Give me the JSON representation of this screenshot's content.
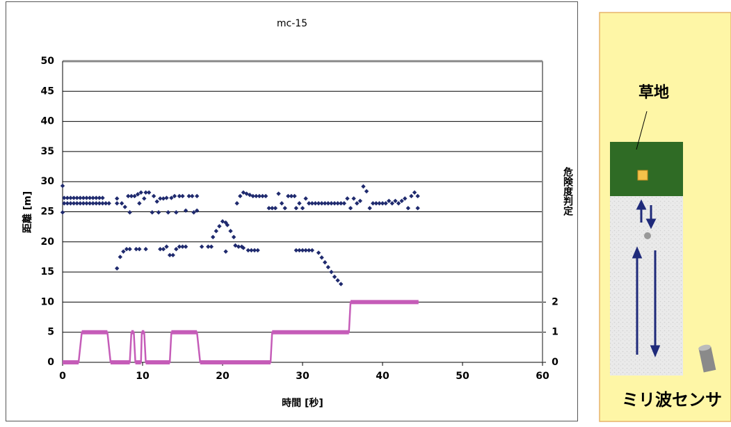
{
  "chart_data": {
    "type": "scatter",
    "title": "mc-15",
    "x_label": "時間 [秒]",
    "y_label": "距離 [m]",
    "y2_label": "危険度判定",
    "xlim": [
      0,
      60
    ],
    "xticks": [
      0,
      10,
      20,
      30,
      40,
      50,
      60
    ],
    "ylim": [
      0,
      50
    ],
    "yticks": [
      0,
      5,
      10,
      15,
      20,
      25,
      30,
      35,
      40,
      45,
      50
    ],
    "y2lim": [
      0,
      10
    ],
    "y2ticks": [
      0,
      1,
      2
    ],
    "grid": true,
    "series": [
      {
        "type": "scatter",
        "color": "#1f2a6e",
        "x": [
          0,
          0,
          0.2,
          0.2,
          0.6,
          0.6,
          1.0,
          1.0,
          1.4,
          1.4,
          1.8,
          1.8,
          2.2,
          2.2,
          2.6,
          2.6,
          3.0,
          3.0,
          3.4,
          3.4,
          3.8,
          3.8,
          4.2,
          4.2,
          4.6,
          4.6,
          5.0,
          5.0,
          5.4,
          5.8,
          6.8,
          6.8,
          7.4,
          7.8,
          8.2,
          8.4,
          8.6,
          9.0,
          9.4,
          9.6,
          9.8,
          10.2,
          10.4,
          10.8,
          11.2,
          11.4,
          11.8,
          12.0,
          12.2,
          12.6,
          13.0,
          13.2,
          13.6,
          14.0,
          14.2,
          14.6,
          15.0,
          15.4,
          15.8,
          16.2,
          16.4,
          16.8,
          16.8,
          6.8,
          7.2,
          7.6,
          8.0,
          8.4,
          9.2,
          9.6,
          10.4,
          12.2,
          12.6,
          13.0,
          13.4,
          13.8,
          14.2,
          14.6,
          15.0,
          15.4,
          17.4,
          18.2,
          18.6,
          18.8,
          19.2,
          19.6,
          20.0,
          20.4,
          20.6,
          21.0,
          21.4,
          21.6,
          22.0,
          22.4,
          22.6,
          23.2,
          23.6,
          24.0,
          24.4,
          20.4,
          21.8,
          22.2,
          22.6,
          23.0,
          23.4,
          23.8,
          24.2,
          24.6,
          25.0,
          25.4,
          25.8,
          26.2,
          26.6,
          27.0,
          27.4,
          27.8,
          28.2,
          28.6,
          29.0,
          29.2,
          29.6,
          30.0,
          30.4,
          30.8,
          31.2,
          31.6,
          32.0,
          32.4,
          32.8,
          33.2,
          33.6,
          34.0,
          34.4,
          34.8,
          35.2,
          35.6,
          36.0,
          36.4,
          36.8,
          37.2,
          37.6,
          38.0,
          38.4,
          38.8,
          39.2,
          39.6,
          40.0,
          40.4,
          40.8,
          41.2,
          41.6,
          42.0,
          42.4,
          42.8,
          43.2,
          43.6,
          44.0,
          44.4,
          44.4,
          29.2,
          29.6,
          30.0,
          30.4,
          30.8,
          31.2,
          32.0,
          32.4,
          32.8,
          33.2,
          33.6,
          34.0,
          34.4,
          34.8
        ],
        "values": [
          29.3,
          24.9,
          27.3,
          26.4,
          27.3,
          26.4,
          27.3,
          26.4,
          27.3,
          26.4,
          27.3,
          26.4,
          27.3,
          26.4,
          27.3,
          26.4,
          27.3,
          26.4,
          27.3,
          26.4,
          27.3,
          26.4,
          27.3,
          26.4,
          27.3,
          26.4,
          27.3,
          26.4,
          26.4,
          26.4,
          27.2,
          26.4,
          26.4,
          25.8,
          27.6,
          24.9,
          27.6,
          27.6,
          27.9,
          26.4,
          28.2,
          27.2,
          28.2,
          28.2,
          24.9,
          27.6,
          26.7,
          24.9,
          27.2,
          27.2,
          27.3,
          24.9,
          27.3,
          27.6,
          24.9,
          27.6,
          27.6,
          25.2,
          27.6,
          27.6,
          24.9,
          25.2,
          27.6,
          15.6,
          17.5,
          18.4,
          18.8,
          18.8,
          18.8,
          18.8,
          18.8,
          18.8,
          18.8,
          19.2,
          17.8,
          17.8,
          18.8,
          19.2,
          19.2,
          19.2,
          19.2,
          19.2,
          19.2,
          20.8,
          21.8,
          22.6,
          23.4,
          23.2,
          22.8,
          21.8,
          20.8,
          19.4,
          19.2,
          19.2,
          19.0,
          18.6,
          18.6,
          18.6,
          18.6,
          18.4,
          26.4,
          27.6,
          28.2,
          28.0,
          27.8,
          27.6,
          27.6,
          27.6,
          27.6,
          27.6,
          25.6,
          25.6,
          25.6,
          28.0,
          26.4,
          25.6,
          27.6,
          27.6,
          27.6,
          25.6,
          26.4,
          25.6,
          27.2,
          26.4,
          26.4,
          26.4,
          26.4,
          26.4,
          26.4,
          26.4,
          26.4,
          26.4,
          26.4,
          26.4,
          26.4,
          27.2,
          25.6,
          27.2,
          26.4,
          26.8,
          29.2,
          28.4,
          25.6,
          26.4,
          26.4,
          26.4,
          26.4,
          26.4,
          26.8,
          26.4,
          26.8,
          26.4,
          26.8,
          27.2,
          25.6,
          27.6,
          28.2,
          25.6,
          27.6,
          18.6,
          18.6,
          18.6,
          18.6,
          18.6,
          18.6,
          18.2,
          17.4,
          16.6,
          15.8,
          15.0,
          14.2,
          13.6,
          13.0
        ]
      },
      {
        "type": "line",
        "axis": "y2",
        "color": "#c55cb8",
        "x": [
          0,
          2.0,
          2.4,
          5.6,
          6.0,
          8.4,
          8.6,
          8.9,
          9.1,
          9.8,
          9.9,
          10.2,
          10.4,
          13.4,
          13.6,
          16.8,
          17.2,
          26.0,
          26.2,
          35.8,
          36.0,
          44.5
        ],
        "values": [
          0,
          0,
          1,
          1,
          0,
          0,
          1,
          1,
          0,
          0,
          1,
          1,
          0,
          0,
          1,
          1,
          0,
          0,
          1,
          1,
          2,
          2
        ]
      }
    ]
  },
  "diagram": {
    "grass_label": "草地",
    "sensor_label": "ミリ波センサ"
  }
}
